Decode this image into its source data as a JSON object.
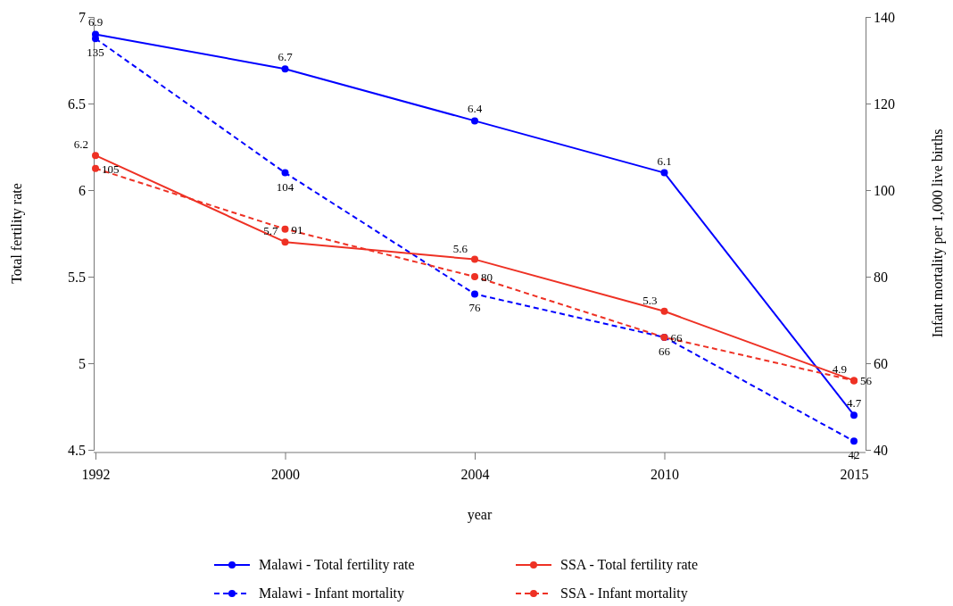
{
  "chart_data": {
    "type": "line",
    "xlabel": "year",
    "ylabel": "Total fertility rate",
    "y2label": "Infant mortality per 1,000 live births",
    "categories": [
      "1992",
      "2000",
      "2004",
      "2010",
      "2015"
    ],
    "series": [
      {
        "name": "Malawi - Total fertility rate",
        "color": "#0000ff",
        "values": [
          6.9,
          6.7,
          6.4,
          6.1,
          4.7
        ],
        "line_style": "solid"
      },
      {
        "name": "Malawi - Infant mortality",
        "color": "#0000ff",
        "values": [
          135,
          104,
          76,
          66,
          42
        ],
        "axis": "y2",
        "line_style": "dashed"
      },
      {
        "name": "SSA - Total fertility rate",
        "color": "#ee3124",
        "values": [
          6.2,
          5.7,
          5.6,
          5.3,
          4.9
        ],
        "line_style": "solid"
      },
      {
        "name": "SSA - Infant mortality",
        "color": "#ee3124",
        "values": [
          105,
          91,
          80,
          66,
          56
        ],
        "axis": "y2",
        "line_style": "dashed"
      }
    ],
    "ylim": [
      4.5,
      7
    ],
    "yticks": [
      4.5,
      5,
      5.5,
      6,
      6.5,
      7
    ],
    "y2lim": [
      40,
      140
    ],
    "y2ticks": [
      40,
      60,
      80,
      100,
      120,
      140
    ],
    "data_labels": true,
    "marker": "circle",
    "legend": "bottom",
    "grid": false
  }
}
